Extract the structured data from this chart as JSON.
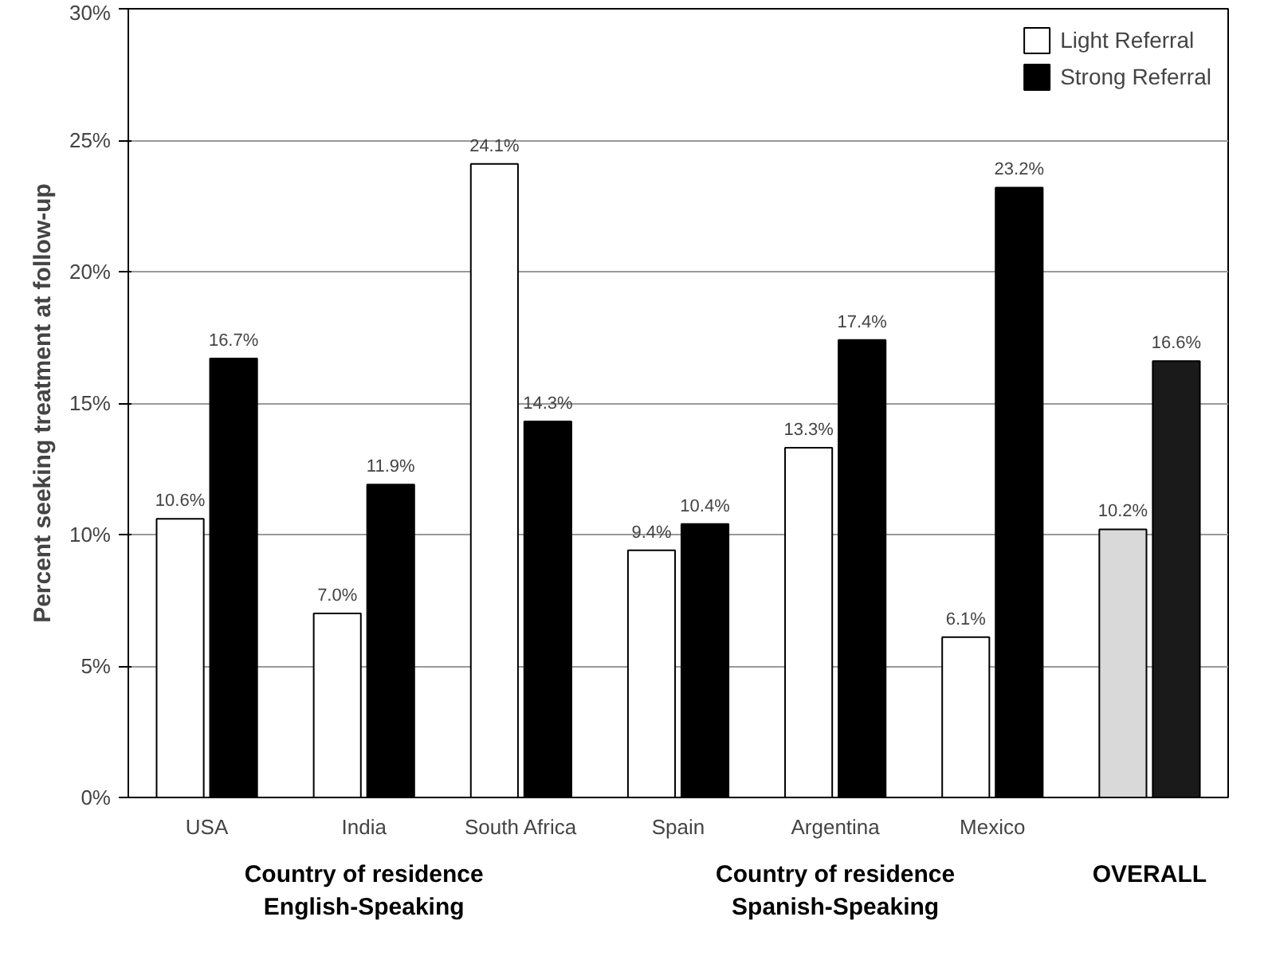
{
  "chart_data": {
    "type": "bar",
    "ylabel": "Percent seeking treatment at follow-up",
    "categories": [
      "USA",
      "India",
      "South Africa",
      "Spain",
      "Argentina",
      "Mexico",
      null
    ],
    "series": [
      {
        "name": "Light Referral",
        "colors": [
          "#ffffff",
          "#ffffff",
          "#ffffff",
          "#ffffff",
          "#ffffff",
          "#ffffff",
          "#d9d9d9"
        ],
        "values": [
          10.6,
          7.0,
          24.1,
          9.4,
          13.3,
          6.1,
          10.2
        ],
        "value_labels": [
          "10.6%",
          "7.0%",
          "24.1%",
          "9.4%",
          "13.3%",
          "6.1%",
          "10.2%"
        ]
      },
      {
        "name": "Strong Referral",
        "colors": [
          "#000000",
          "#000000",
          "#000000",
          "#000000",
          "#000000",
          "#000000",
          "#1a1a1a"
        ],
        "values": [
          16.7,
          11.9,
          14.3,
          10.4,
          17.4,
          23.2,
          16.6
        ],
        "value_labels": [
          "16.7%",
          "11.9%",
          "14.3%",
          "10.4%",
          "17.4%",
          "23.2%",
          "16.6%"
        ]
      }
    ],
    "ylim": [
      0,
      30
    ],
    "yticks": [
      {
        "value": 0,
        "label": "0%"
      },
      {
        "value": 5,
        "label": "5%"
      },
      {
        "value": 10,
        "label": "10%"
      },
      {
        "value": 15,
        "label": "15%"
      },
      {
        "value": 20,
        "label": "20%"
      },
      {
        "value": 25,
        "label": "25%"
      },
      {
        "value": 30,
        "label": "30%"
      }
    ],
    "grid": "y",
    "legend": "top right",
    "annotations": [
      "Country of residence\nEnglish-Speaking",
      "Country of residence\nSpanish-Speaking",
      "OVERALL"
    ]
  }
}
